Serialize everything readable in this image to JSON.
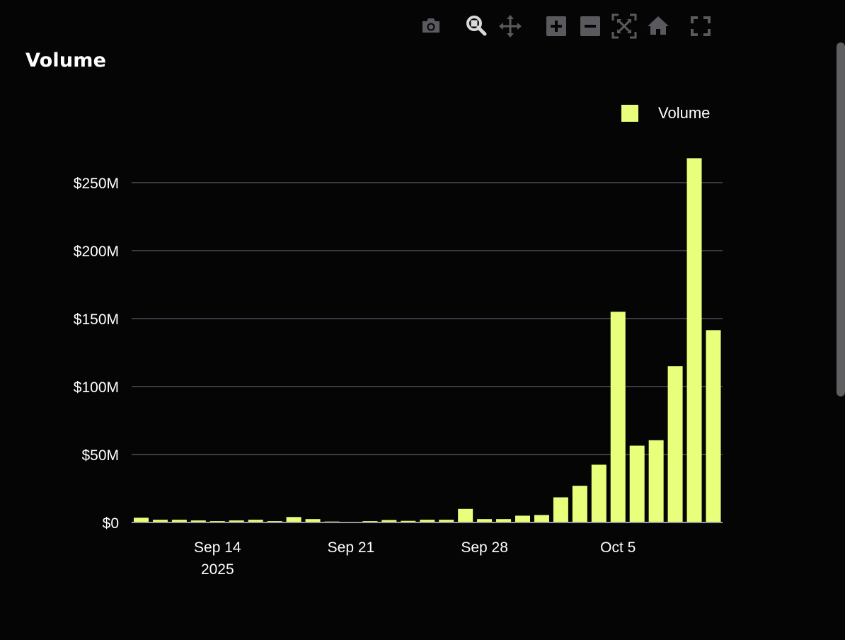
{
  "title": "Volume",
  "toolbar": {
    "items": [
      {
        "name": "camera-icon",
        "label": "Download plot as png"
      },
      {
        "name": "zoom-icon",
        "label": "Zoom"
      },
      {
        "name": "pan-icon",
        "label": "Pan"
      },
      {
        "name": "zoom-in-icon",
        "label": "Zoom in"
      },
      {
        "name": "zoom-out-icon",
        "label": "Zoom out"
      },
      {
        "name": "autoscale-icon",
        "label": "Autoscale"
      },
      {
        "name": "home-icon",
        "label": "Reset axes"
      },
      {
        "name": "fullscreen-icon",
        "label": "Fullscreen"
      }
    ]
  },
  "colors": {
    "background": "#050506",
    "bar": "#e7ff7a",
    "grid": "#3a3a44",
    "text": "#ffffff",
    "toolbar_icon": "#5a5a5e",
    "toolbar_active": "#d9d9d9"
  },
  "legend": {
    "label": "Volume"
  },
  "chart_data": {
    "type": "bar",
    "title": "Volume",
    "xlabel": "",
    "ylabel": "",
    "grid": true,
    "legend_position": "top-right",
    "ylim": [
      0,
      280000000
    ],
    "y_ticks": [
      0,
      50000000,
      100000000,
      150000000,
      200000000,
      250000000
    ],
    "y_tick_labels": [
      "$0",
      "$50M",
      "$100M",
      "$150M",
      "$200M",
      "$250M"
    ],
    "x_tick_labels": [
      {
        "date": "2025-09-14",
        "label": "Sep 14",
        "sublabel": "2025"
      },
      {
        "date": "2025-09-21",
        "label": "Sep 21",
        "sublabel": ""
      },
      {
        "date": "2025-09-28",
        "label": "Sep 28",
        "sublabel": ""
      },
      {
        "date": "2025-10-05",
        "label": "Oct 5",
        "sublabel": ""
      }
    ],
    "series": [
      {
        "name": "Volume",
        "x": [
          "2025-09-10",
          "2025-09-11",
          "2025-09-12",
          "2025-09-13",
          "2025-09-14",
          "2025-09-15",
          "2025-09-16",
          "2025-09-17",
          "2025-09-18",
          "2025-09-19",
          "2025-09-20",
          "2025-09-21",
          "2025-09-22",
          "2025-09-23",
          "2025-09-24",
          "2025-09-25",
          "2025-09-26",
          "2025-09-27",
          "2025-09-28",
          "2025-09-29",
          "2025-09-30",
          "2025-10-01",
          "2025-10-02",
          "2025-10-03",
          "2025-10-04",
          "2025-10-05",
          "2025-10-06",
          "2025-10-07",
          "2025-10-08",
          "2025-10-09",
          "2025-10-10"
        ],
        "values": [
          3500000,
          2000000,
          2000000,
          1500000,
          1000000,
          1500000,
          2000000,
          1000000,
          4000000,
          2500000,
          700000,
          500000,
          1000000,
          1800000,
          1200000,
          2000000,
          2000000,
          10000000,
          2500000,
          2500000,
          5000000,
          5500000,
          18500000,
          27000000,
          42500000,
          155000000,
          56500000,
          60500000,
          115000000,
          268000000,
          141500000
        ]
      }
    ]
  }
}
